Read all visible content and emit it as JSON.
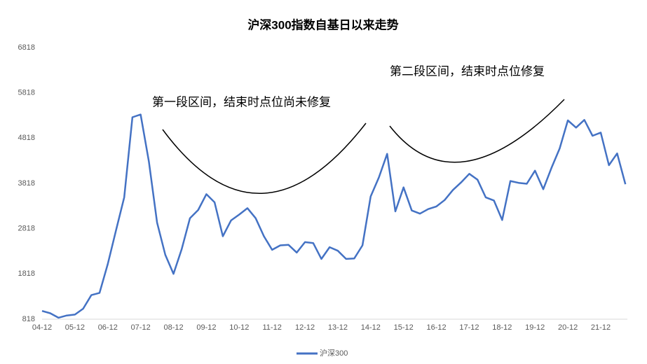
{
  "chart_data": {
    "type": "line",
    "title": "沪深300指数自基日以来走势",
    "categories": [
      "04-12",
      null,
      null,
      null,
      "05-12",
      null,
      null,
      null,
      "06-12",
      null,
      null,
      null,
      "07-12",
      null,
      null,
      null,
      "08-12",
      null,
      null,
      null,
      "09-12",
      null,
      null,
      null,
      "10-12",
      null,
      null,
      null,
      "11-12",
      null,
      null,
      null,
      "12-12",
      null,
      null,
      null,
      "13-12",
      null,
      null,
      null,
      "14-12",
      null,
      null,
      null,
      "15-12",
      null,
      null,
      null,
      "16-12",
      null,
      null,
      null,
      "17-12",
      null,
      null,
      null,
      "18-12",
      null,
      null,
      null,
      "19-12",
      null,
      null,
      null,
      "20-12",
      null,
      null,
      null,
      "21-12",
      null,
      null,
      null
    ],
    "series": [
      {
        "name": "沪深300",
        "color": "#4472c4",
        "values": [
          1000,
          950,
          850,
          900,
          920,
          1050,
          1350,
          1400,
          2040,
          2780,
          3510,
          5280,
          5340,
          4300,
          2950,
          2240,
          1820,
          2370,
          3050,
          3230,
          3580,
          3400,
          2650,
          3000,
          3130,
          3270,
          3050,
          2650,
          2350,
          2450,
          2460,
          2290,
          2520,
          2500,
          2150,
          2410,
          2330,
          2150,
          2160,
          2450,
          3530,
          3950,
          4470,
          3200,
          3730,
          3220,
          3150,
          3250,
          3310,
          3450,
          3670,
          3840,
          4030,
          3900,
          3510,
          3440,
          3010,
          3870,
          3830,
          3810,
          4100,
          3690,
          4160,
          4590,
          5210,
          5050,
          5220,
          4870,
          4940,
          4220,
          4480,
          3800
        ]
      }
    ],
    "ylim": [
      818,
      6818
    ],
    "yticks": [
      818,
      1818,
      2818,
      3818,
      4818,
      5818,
      6818
    ],
    "annotations": [
      "第一段区间，结束时点位尚未修复",
      "第二段区间，结束时点位修复"
    ],
    "legend": "bottom"
  }
}
